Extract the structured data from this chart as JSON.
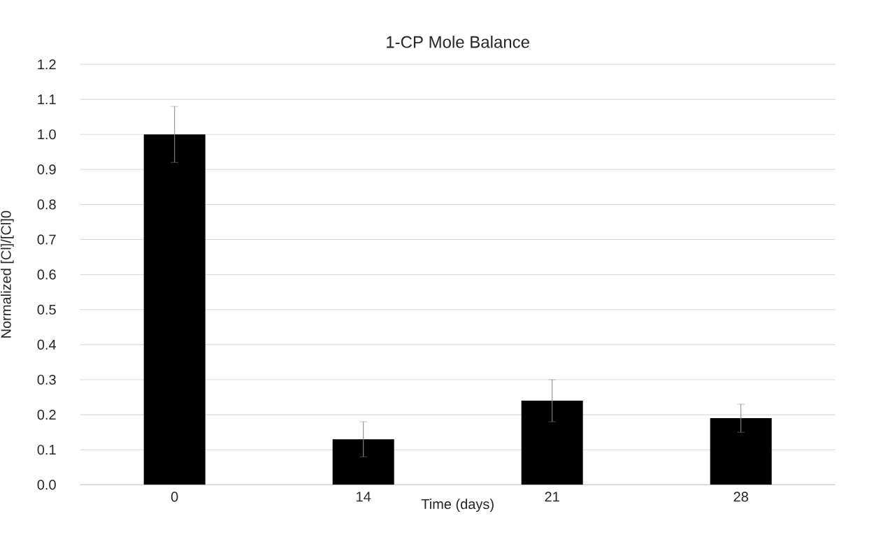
{
  "chart_data": {
    "type": "bar",
    "title": "1-CP Mole Balance",
    "xlabel": "Time (days)",
    "ylabel": "Normalized [Cl]/[Cl]0",
    "categories": [
      "0",
      "14",
      "21",
      "28"
    ],
    "values": [
      1.0,
      0.13,
      0.24,
      0.19
    ],
    "errors": [
      0.08,
      0.05,
      0.06,
      0.04
    ],
    "color": "#000000",
    "ylim": [
      0,
      1.2
    ],
    "yticks": [
      {
        "value": 0,
        "label": "0.0"
      },
      {
        "value": 0.1,
        "label": "0.1"
      },
      {
        "value": 0.2,
        "label": "0.2"
      },
      {
        "value": 0.3,
        "label": "0.3"
      },
      {
        "value": 0.4,
        "label": "0.4"
      },
      {
        "value": 0.5,
        "label": "0.5"
      },
      {
        "value": 0.6,
        "label": "0.6"
      },
      {
        "value": 0.7,
        "label": "0.7"
      },
      {
        "value": 0.8,
        "label": "0.8"
      },
      {
        "value": 0.9,
        "label": "0.9"
      },
      {
        "value": 1.0,
        "label": "1.0"
      },
      {
        "value": 1.1,
        "label": "1.1"
      },
      {
        "value": 1.2,
        "label": "1.2"
      }
    ],
    "grid": "y"
  }
}
